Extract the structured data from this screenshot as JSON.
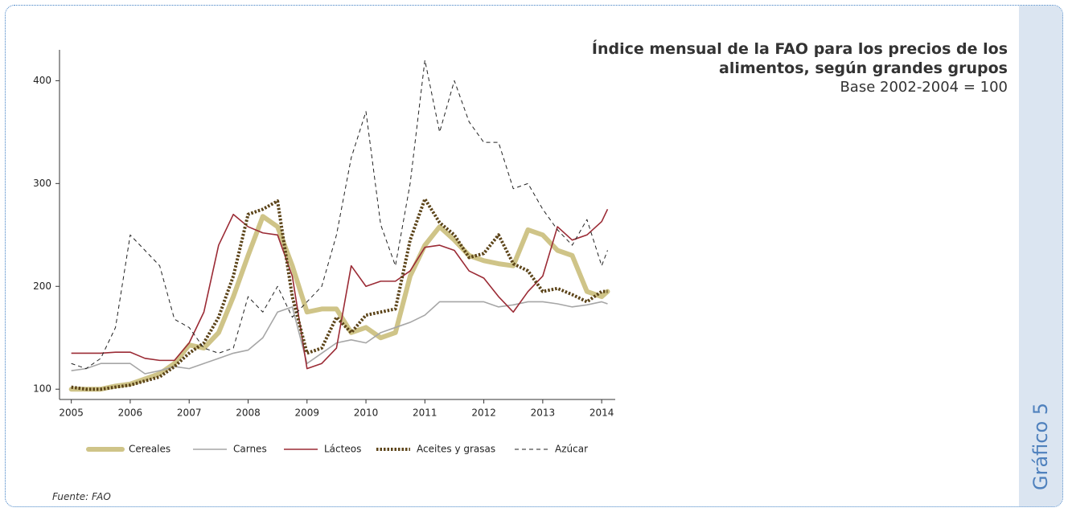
{
  "chart_data": {
    "type": "line",
    "title": "Índice mensual de la FAO para los precios de los alimentos, según grandes grupos",
    "subtitle": "Base 2002-2004 = 100",
    "source": "Fuente: FAO",
    "figure_label": "Gráfico 5",
    "x": [
      2005,
      2005.25,
      2005.5,
      2005.75,
      2006,
      2006.25,
      2006.5,
      2006.75,
      2007,
      2007.25,
      2007.5,
      2007.75,
      2008,
      2008.25,
      2008.5,
      2008.75,
      2009,
      2009.25,
      2009.5,
      2009.75,
      2010,
      2010.25,
      2010.5,
      2010.75,
      2011,
      2011.25,
      2011.5,
      2011.75,
      2012,
      2012.25,
      2012.5,
      2012.75,
      2013,
      2013.25,
      2013.5,
      2013.75,
      2014,
      2014.1
    ],
    "xlim": [
      2004.8,
      2014.23
    ],
    "xticks": [
      2005,
      2006,
      2007,
      2008,
      2009,
      2010,
      2011,
      2012,
      2013,
      2014
    ],
    "ylim": [
      90,
      430
    ],
    "yticks": [
      100,
      200,
      300,
      400
    ],
    "series": [
      {
        "name": "Cereales",
        "color": "#cfc488",
        "style": "thick",
        "values": [
          100,
          100,
          100,
          103,
          105,
          110,
          115,
          125,
          143,
          140,
          155,
          190,
          230,
          268,
          258,
          220,
          175,
          178,
          178,
          155,
          160,
          150,
          155,
          210,
          240,
          258,
          245,
          230,
          225,
          222,
          220,
          255,
          250,
          235,
          230,
          195,
          190,
          195
        ]
      },
      {
        "name": "Carnes",
        "color": "#a6a6a6",
        "style": "solid",
        "values": [
          118,
          120,
          125,
          125,
          125,
          115,
          118,
          122,
          120,
          125,
          130,
          135,
          138,
          150,
          175,
          180,
          125,
          135,
          145,
          148,
          145,
          155,
          160,
          165,
          172,
          185,
          185,
          185,
          185,
          180,
          182,
          185,
          185,
          183,
          180,
          182,
          185,
          183
        ]
      },
      {
        "name": "Lácteos",
        "color": "#9b2b35",
        "style": "solid",
        "values": [
          135,
          135,
          135,
          136,
          136,
          130,
          128,
          128,
          145,
          175,
          240,
          270,
          258,
          252,
          250,
          210,
          120,
          125,
          140,
          220,
          200,
          205,
          205,
          215,
          238,
          240,
          235,
          215,
          208,
          190,
          175,
          195,
          210,
          258,
          245,
          250,
          263,
          275
        ]
      },
      {
        "name": "Aceites y grasas",
        "color": "#5c4419",
        "style": "dotted",
        "values": [
          102,
          100,
          100,
          102,
          104,
          108,
          112,
          122,
          135,
          145,
          170,
          210,
          270,
          275,
          283,
          190,
          135,
          140,
          170,
          155,
          172,
          175,
          178,
          245,
          285,
          262,
          250,
          228,
          232,
          250,
          222,
          215,
          195,
          198,
          192,
          185,
          195,
          195
        ]
      },
      {
        "name": "Azúcar",
        "color": "#222222",
        "style": "dashed",
        "values": [
          125,
          120,
          130,
          160,
          250,
          235,
          220,
          168,
          160,
          140,
          135,
          140,
          190,
          175,
          200,
          170,
          185,
          200,
          250,
          325,
          370,
          260,
          220,
          300,
          420,
          350,
          400,
          360,
          340,
          340,
          295,
          300,
          275,
          255,
          240,
          265,
          220,
          235
        ]
      }
    ]
  }
}
